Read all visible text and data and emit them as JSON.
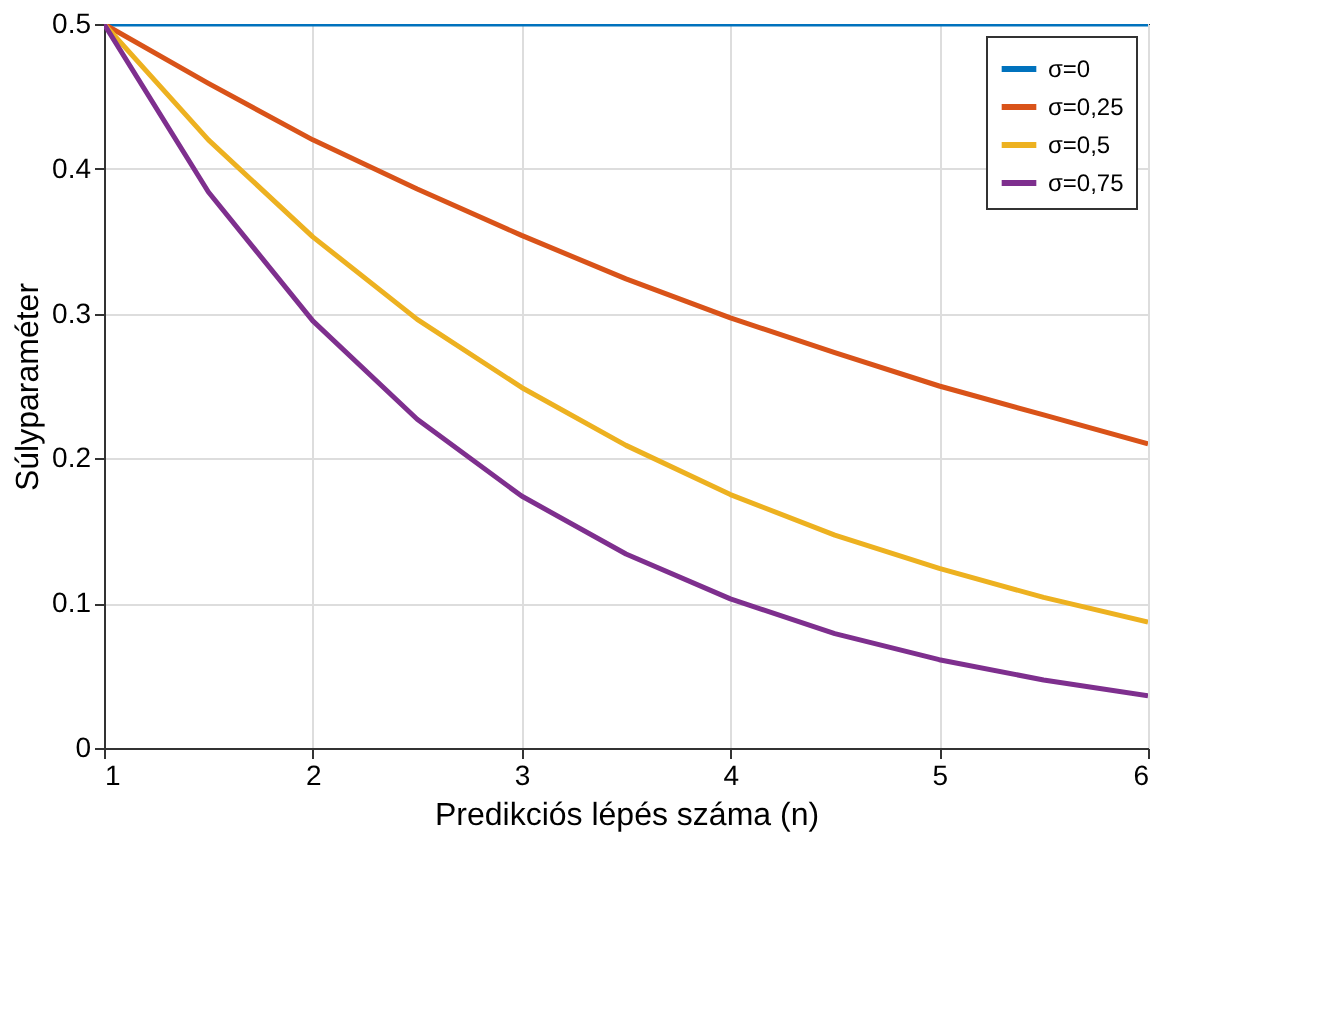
{
  "chart_data": {
    "type": "line",
    "xlabel": "Predikciós lépés száma (n)",
    "ylabel": "Súlyparaméter",
    "x": [
      1,
      1.5,
      2,
      2.5,
      3,
      3.5,
      4,
      4.5,
      5,
      5.5,
      6
    ],
    "series": [
      {
        "name": "σ=0",
        "color": "#0072bd",
        "values": [
          0.5,
          0.5,
          0.5,
          0.5,
          0.5,
          0.5,
          0.5,
          0.5,
          0.5,
          0.5,
          0.5
        ]
      },
      {
        "name": "σ=0,25",
        "color": "#d95319",
        "values": [
          0.5,
          0.459,
          0.42,
          0.386,
          0.354,
          0.324,
          0.297,
          0.273,
          0.25,
          0.23,
          0.21
        ]
      },
      {
        "name": "σ=0,5",
        "color": "#edb120",
        "values": [
          0.5,
          0.42,
          0.353,
          0.296,
          0.249,
          0.209,
          0.175,
          0.147,
          0.124,
          0.104,
          0.087
        ]
      },
      {
        "name": "σ=0,75",
        "color": "#7e2f8e",
        "values": [
          0.5,
          0.384,
          0.295,
          0.227,
          0.174,
          0.134,
          0.103,
          0.079,
          0.061,
          0.047,
          0.036
        ]
      }
    ],
    "xlim": [
      1,
      6
    ],
    "xticks": [
      1,
      2,
      3,
      4,
      5,
      6
    ],
    "ylim": [
      0,
      0.5
    ],
    "yticks": [
      0,
      0.1,
      0.2,
      0.3,
      0.4,
      0.5
    ],
    "grid": true,
    "legend": "top right",
    "marker": "none",
    "line_style": "solid"
  }
}
